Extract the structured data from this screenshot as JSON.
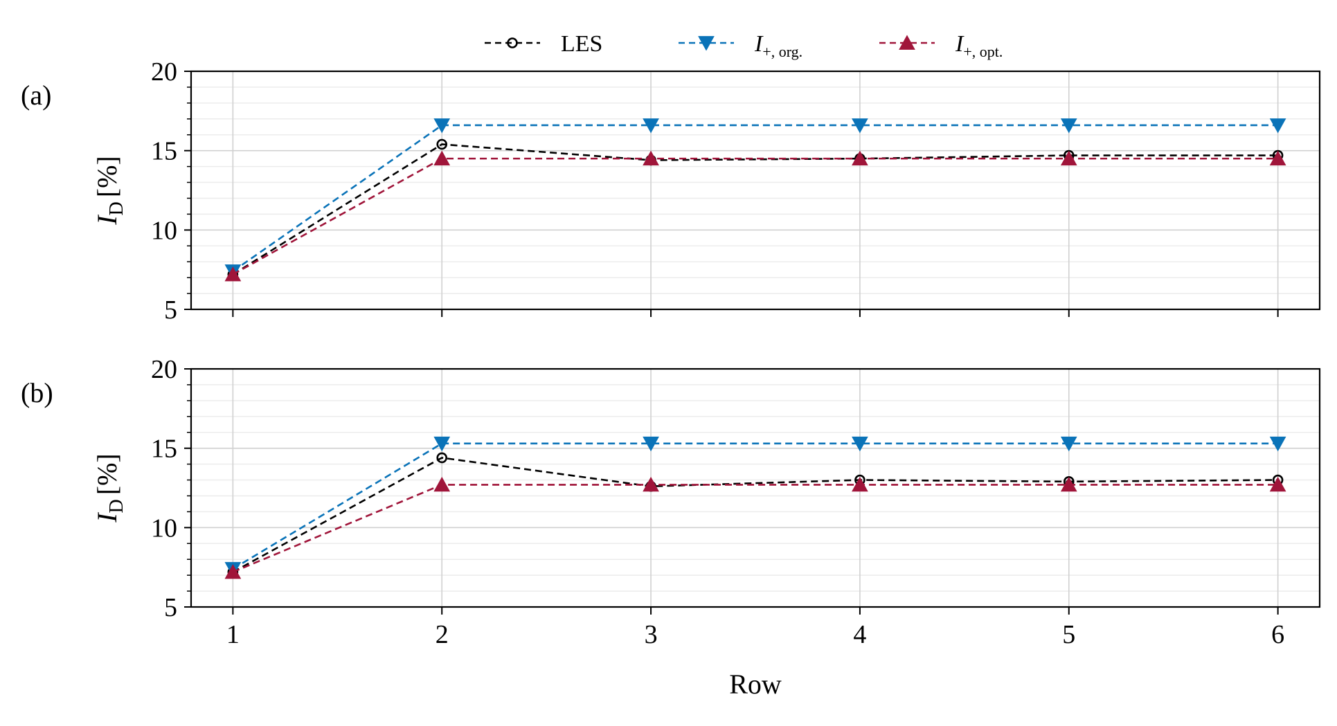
{
  "legend": {
    "items": [
      {
        "label": "LES",
        "label_main": "",
        "label_sub": "",
        "color": "#000000",
        "marker": "open-circle"
      },
      {
        "label": "I+, org.",
        "label_main": "I",
        "label_sub": "+, org.",
        "color": "#0a73b8",
        "marker": "triangle-down"
      },
      {
        "label": "I+, opt.",
        "label_main": "I",
        "label_sub": "+, opt.",
        "color": "#a0153a",
        "marker": "triangle-up"
      }
    ]
  },
  "xlabel": "Row",
  "chart_data": [
    {
      "type": "line",
      "panel_label": "(a)",
      "ylabel_main": "I",
      "ylabel_sub": "D",
      "ylabel_unit": "[%]",
      "x": [
        1,
        2,
        3,
        4,
        5,
        6
      ],
      "xlim": [
        0.8,
        6.2
      ],
      "ylim": [
        5,
        20
      ],
      "yticks": [
        5,
        10,
        15,
        20
      ],
      "grid": true,
      "series": [
        {
          "name": "LES",
          "color": "#000000",
          "values": [
            7.2,
            15.4,
            14.4,
            14.5,
            14.7,
            14.7
          ]
        },
        {
          "name": "I+, org.",
          "color": "#0a73b8",
          "values": [
            7.4,
            16.6,
            16.6,
            16.6,
            16.6,
            16.6
          ]
        },
        {
          "name": "I+, opt.",
          "color": "#a0153a",
          "values": [
            7.2,
            14.5,
            14.5,
            14.5,
            14.5,
            14.5
          ]
        }
      ]
    },
    {
      "type": "line",
      "panel_label": "(b)",
      "ylabel_main": "I",
      "ylabel_sub": "D",
      "ylabel_unit": "[%]",
      "x": [
        1,
        2,
        3,
        4,
        5,
        6
      ],
      "xlim": [
        0.8,
        6.2
      ],
      "ylim": [
        5,
        20
      ],
      "yticks": [
        5,
        10,
        15,
        20
      ],
      "grid": true,
      "series": [
        {
          "name": "LES",
          "color": "#000000",
          "values": [
            7.2,
            14.4,
            12.6,
            13.0,
            12.9,
            13.0
          ]
        },
        {
          "name": "I+, org.",
          "color": "#0a73b8",
          "values": [
            7.4,
            15.3,
            15.3,
            15.3,
            15.3,
            15.3
          ]
        },
        {
          "name": "I+, opt.",
          "color": "#a0153a",
          "values": [
            7.2,
            12.7,
            12.7,
            12.7,
            12.7,
            12.7
          ]
        }
      ]
    }
  ]
}
